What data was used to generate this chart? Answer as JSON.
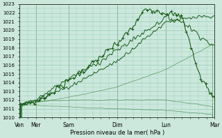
{
  "xlabel": "Pression niveau de la mer( hPa )",
  "xlabels": [
    "Ven",
    "Mer",
    "Sam",
    "Dim",
    "Lun",
    "Mar"
  ],
  "xtick_pos": [
    0,
    0.5,
    1.5,
    3.0,
    4.5,
    6.0
  ],
  "xlim": [
    0,
    6.0
  ],
  "ylim": [
    1010,
    1023
  ],
  "yticks": [
    1010,
    1011,
    1012,
    1013,
    1014,
    1015,
    1016,
    1017,
    1018,
    1019,
    1020,
    1021,
    1022,
    1023
  ],
  "bg_color": "#cce8dd",
  "grid_color": "#99ccb8",
  "line_dark": "#1a5c1a",
  "line_med": "#2d7a2d",
  "line_thin": "#3a9e3a"
}
